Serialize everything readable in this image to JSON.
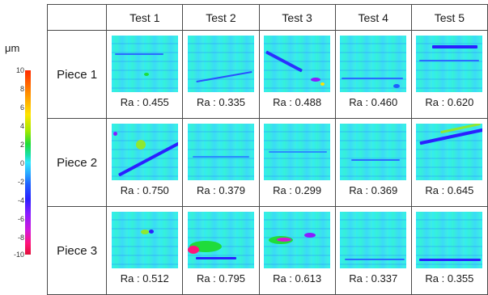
{
  "legend": {
    "unit": "μm",
    "ticks": [
      "10",
      "8",
      "6",
      "4",
      "2",
      "0",
      "-2",
      "-4",
      "-6",
      "-8",
      "-10"
    ],
    "colors": [
      "#ff2a00",
      "#ffe400",
      "#1fdc3a",
      "#2fe6ff",
      "#1e60ff",
      "#8a1dff",
      "#e0103a"
    ]
  },
  "columns": [
    "Test 1",
    "Test 2",
    "Test 3",
    "Test 4",
    "Test 5"
  ],
  "rows": [
    {
      "label": "Piece 1",
      "values": [
        "Ra : 0.455",
        "Ra : 0.335",
        "Ra : 0.488",
        "Ra : 0.460",
        "Ra : 0.620"
      ]
    },
    {
      "label": "Piece 2",
      "values": [
        "Ra : 0.750",
        "Ra : 0.379",
        "Ra : 0.299",
        "Ra : 0.369",
        "Ra : 0.645"
      ]
    },
    {
      "label": "Piece 3",
      "values": [
        "Ra : 0.512",
        "Ra : 0.795",
        "Ra : 0.613",
        "Ra : 0.337",
        "Ra : 0.355"
      ]
    }
  ]
}
